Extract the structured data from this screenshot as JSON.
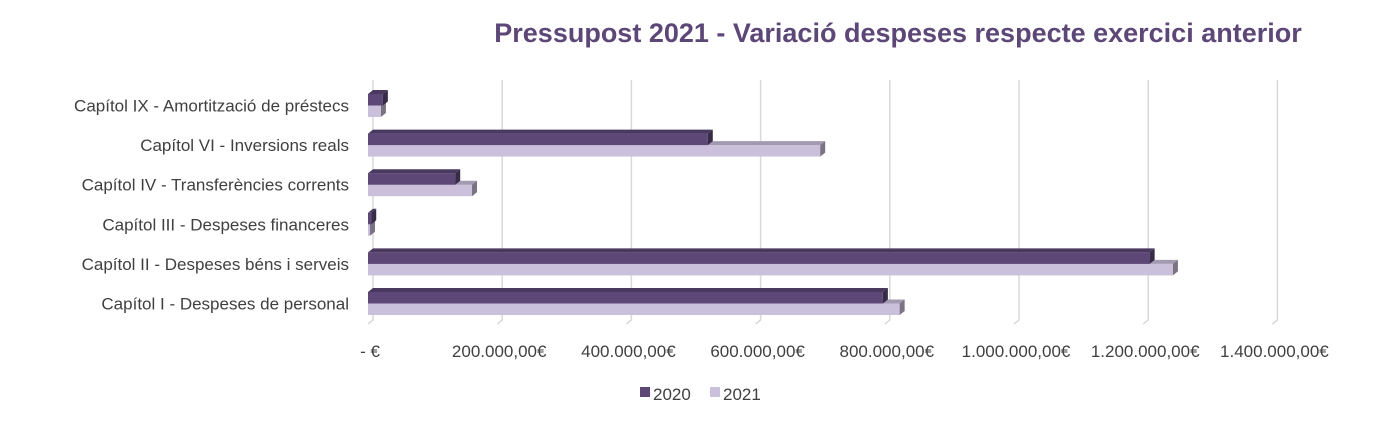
{
  "chart_data": {
    "type": "bar",
    "orientation": "horizontal",
    "style": "3d-clustered",
    "title": "Pressupost 2021 - Variació despeses respecte exercici anterior",
    "categories": [
      "Capítol IX - Amortització de préstecs",
      "Capítol VI - Inversions reals",
      "Capítol IV - Transferències corrents",
      "Capítol III - Despeses financeres",
      "Capítol II - Despeses béns i serveis",
      "Capítol I - Despeses de personal"
    ],
    "series": [
      {
        "name": "2020",
        "color": "#5c4777",
        "values": [
          23000,
          526000,
          135000,
          5000,
          1210000,
          797000
        ]
      },
      {
        "name": "2021",
        "color": "#cbc0dc",
        "values": [
          20000,
          700000,
          161000,
          3000,
          1246000,
          823000
        ]
      }
    ],
    "xlim": [
      0,
      1400000
    ],
    "xticks": [
      0,
      200000,
      400000,
      600000,
      800000,
      1000000,
      1200000,
      1400000
    ],
    "xtick_labels": [
      "-   €",
      "200.000,00€",
      "400.000,00€",
      "600.000,00€",
      "800.000,00€",
      "1.000.000,00€",
      "1.200.000,00€",
      "1.400.000,00€"
    ],
    "grid": true,
    "legend": "bottom",
    "title_color": "#5c4777"
  }
}
